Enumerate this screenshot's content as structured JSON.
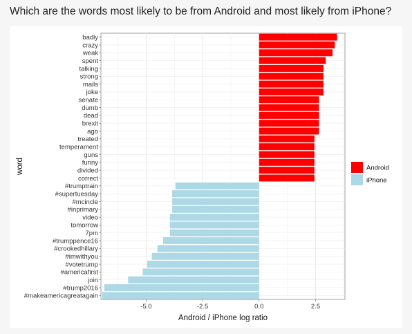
{
  "title": "Which are the words most likely to be from Android and most likely from iPhone?",
  "colors": {
    "android": "#ff0000",
    "iphone": "#add8e6"
  },
  "chart_data": {
    "type": "bar",
    "orientation": "horizontal",
    "xlabel": "Android / iPhone log ratio",
    "ylabel": "word",
    "xlim": [
      -7.0,
      3.8
    ],
    "xticks": [
      -5.0,
      -2.5,
      0.0,
      2.5
    ],
    "xtick_labels": [
      "-5.0",
      "-2.5",
      "0.0",
      "2.5"
    ],
    "grid": true,
    "legend_position": "right",
    "legend": [
      {
        "label": "Android",
        "color": "#ff0000"
      },
      {
        "label": "iPhone",
        "color": "#add8e6"
      }
    ],
    "categories": [
      "badly",
      "crazy",
      "weak",
      "spent",
      "talking",
      "strong",
      "mails",
      "joke",
      "senate",
      "dumb",
      "dead",
      "brexit",
      "ago",
      "treated",
      "temperament",
      "guns",
      "funny",
      "divided",
      "correct",
      "#trumptrain",
      "#supertuesday",
      "#mcincle",
      "#inprimary",
      "video",
      "tomorrow",
      "7pm",
      "#trumppence16",
      "#crookedhillary",
      "#imwithyou",
      "#votetrump",
      "#americafirst",
      "join",
      "#trump2016",
      "#makeamericagreatagain"
    ],
    "values": [
      3.45,
      3.35,
      3.25,
      2.95,
      2.85,
      2.85,
      2.85,
      2.85,
      2.65,
      2.65,
      2.65,
      2.65,
      2.65,
      2.45,
      2.45,
      2.45,
      2.45,
      2.45,
      2.45,
      -3.7,
      -3.85,
      -3.85,
      -3.85,
      -3.95,
      -3.95,
      -3.95,
      -4.25,
      -4.5,
      -4.75,
      -4.95,
      -5.15,
      -5.8,
      -6.85,
      -6.95
    ],
    "groups": [
      "Android",
      "Android",
      "Android",
      "Android",
      "Android",
      "Android",
      "Android",
      "Android",
      "Android",
      "Android",
      "Android",
      "Android",
      "Android",
      "Android",
      "Android",
      "Android",
      "Android",
      "Android",
      "Android",
      "iPhone",
      "iPhone",
      "iPhone",
      "iPhone",
      "iPhone",
      "iPhone",
      "iPhone",
      "iPhone",
      "iPhone",
      "iPhone",
      "iPhone",
      "iPhone",
      "iPhone",
      "iPhone",
      "iPhone"
    ]
  }
}
